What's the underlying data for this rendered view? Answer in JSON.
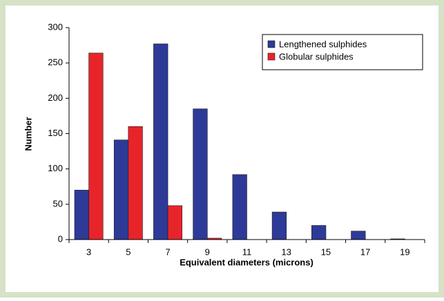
{
  "chart_data": {
    "type": "bar",
    "x_label": "Equivalent diameters (microns)",
    "y_label": "Number",
    "categories": [
      "3",
      "5",
      "7",
      "9",
      "11",
      "13",
      "15",
      "17",
      "19"
    ],
    "series": [
      {
        "name": "Lengthened sulphides",
        "color": "#2e3a97",
        "values": [
          70,
          141,
          277,
          185,
          92,
          39,
          20,
          12,
          1
        ]
      },
      {
        "name": "Globular sulphides",
        "color": "#e8242b",
        "values": [
          264,
          160,
          48,
          2,
          0,
          0,
          0,
          0,
          0
        ]
      }
    ],
    "ylim": [
      0,
      300
    ],
    "yticks": [
      0,
      50,
      100,
      150,
      200,
      250,
      300
    ],
    "grid": false,
    "legend": "top-right"
  }
}
